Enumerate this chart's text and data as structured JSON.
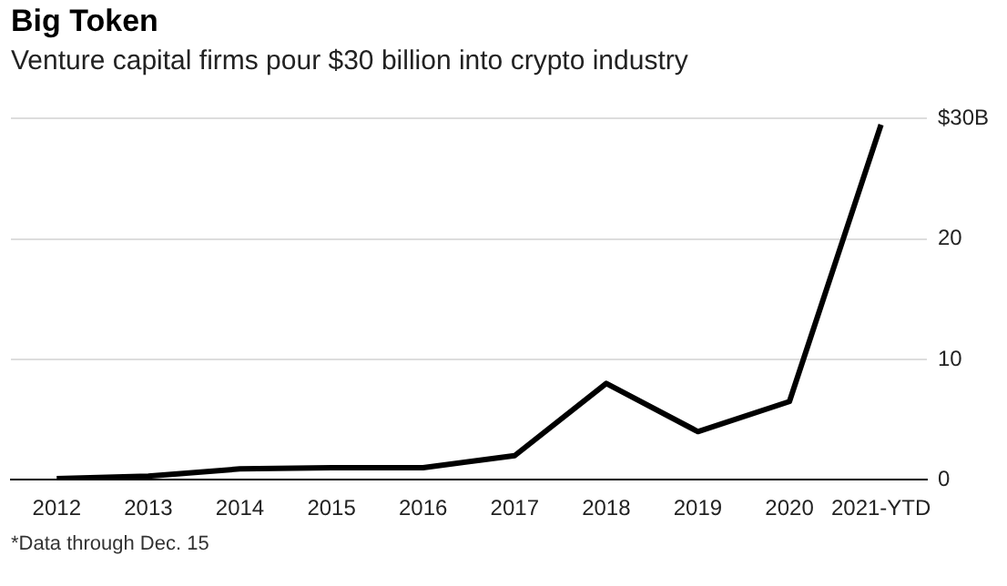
{
  "chart_data": {
    "type": "line",
    "title": "Big Token",
    "subtitle": "Venture capital firms pour $30 billion into crypto industry",
    "categories": [
      "2012",
      "2013",
      "2014",
      "2015",
      "2016",
      "2017",
      "2018",
      "2019",
      "2020",
      "2021-YTD"
    ],
    "series": [
      {
        "color": "#000000",
        "values": [
          0.1,
          0.3,
          0.9,
          1.0,
          1.0,
          2.0,
          8.0,
          4.0,
          6.5,
          29.5
        ]
      }
    ],
    "ylim": [
      0,
      30
    ],
    "yticks": [
      0,
      10,
      20,
      {
        "value": 30,
        "label": "$30B"
      }
    ],
    "grid": "y",
    "legend": false,
    "marker": "none",
    "line_style": "solid",
    "annotations": [
      "*Data through Dec. 15"
    ]
  }
}
